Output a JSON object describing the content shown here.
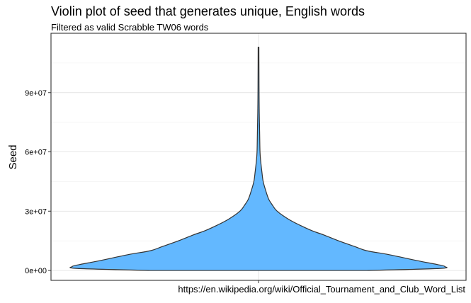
{
  "chart_data": {
    "type": "violin",
    "title": "Violin plot of seed that generates unique, English words",
    "subtitle": "Filtered as valid Scrabble TW06 words",
    "xlabel": "",
    "ylabel": "Seed",
    "caption": "https://en.wikipedia.org/wiki/Official_Tournament_and_Club_Word_List",
    "ylim": [
      -5000000,
      120000000
    ],
    "y_ticks": [
      {
        "value": 0,
        "label": "0e+00"
      },
      {
        "value": 30000000,
        "label": "3e+07"
      },
      {
        "value": 60000000,
        "label": "6e+07"
      },
      {
        "value": 90000000,
        "label": "9e+07"
      }
    ],
    "grid": true,
    "fill_color": "#63B8FF",
    "outline_color": "#333333",
    "series": [
      {
        "density": [
          {
            "y": 0,
            "w": 0.58
          },
          {
            "y": 1000000,
            "w": 0.97
          },
          {
            "y": 2000000,
            "w": 1.0
          },
          {
            "y": 3000000,
            "w": 0.96
          },
          {
            "y": 5000000,
            "w": 0.85
          },
          {
            "y": 8000000,
            "w": 0.7
          },
          {
            "y": 10000000,
            "w": 0.58
          },
          {
            "y": 12000000,
            "w": 0.52
          },
          {
            "y": 15000000,
            "w": 0.43
          },
          {
            "y": 18000000,
            "w": 0.35
          },
          {
            "y": 20000000,
            "w": 0.29
          },
          {
            "y": 23000000,
            "w": 0.22
          },
          {
            "y": 26000000,
            "w": 0.16
          },
          {
            "y": 30000000,
            "w": 0.1
          },
          {
            "y": 33000000,
            "w": 0.075
          },
          {
            "y": 36000000,
            "w": 0.055
          },
          {
            "y": 40000000,
            "w": 0.04
          },
          {
            "y": 45000000,
            "w": 0.025
          },
          {
            "y": 50000000,
            "w": 0.018
          },
          {
            "y": 55000000,
            "w": 0.012
          },
          {
            "y": 60000000,
            "w": 0.008
          },
          {
            "y": 70000000,
            "w": 0.006
          },
          {
            "y": 80000000,
            "w": 0.004
          },
          {
            "y": 90000000,
            "w": 0.003
          },
          {
            "y": 100000000,
            "w": 0.0025
          },
          {
            "y": 113000000,
            "w": 0.002
          }
        ]
      }
    ]
  }
}
